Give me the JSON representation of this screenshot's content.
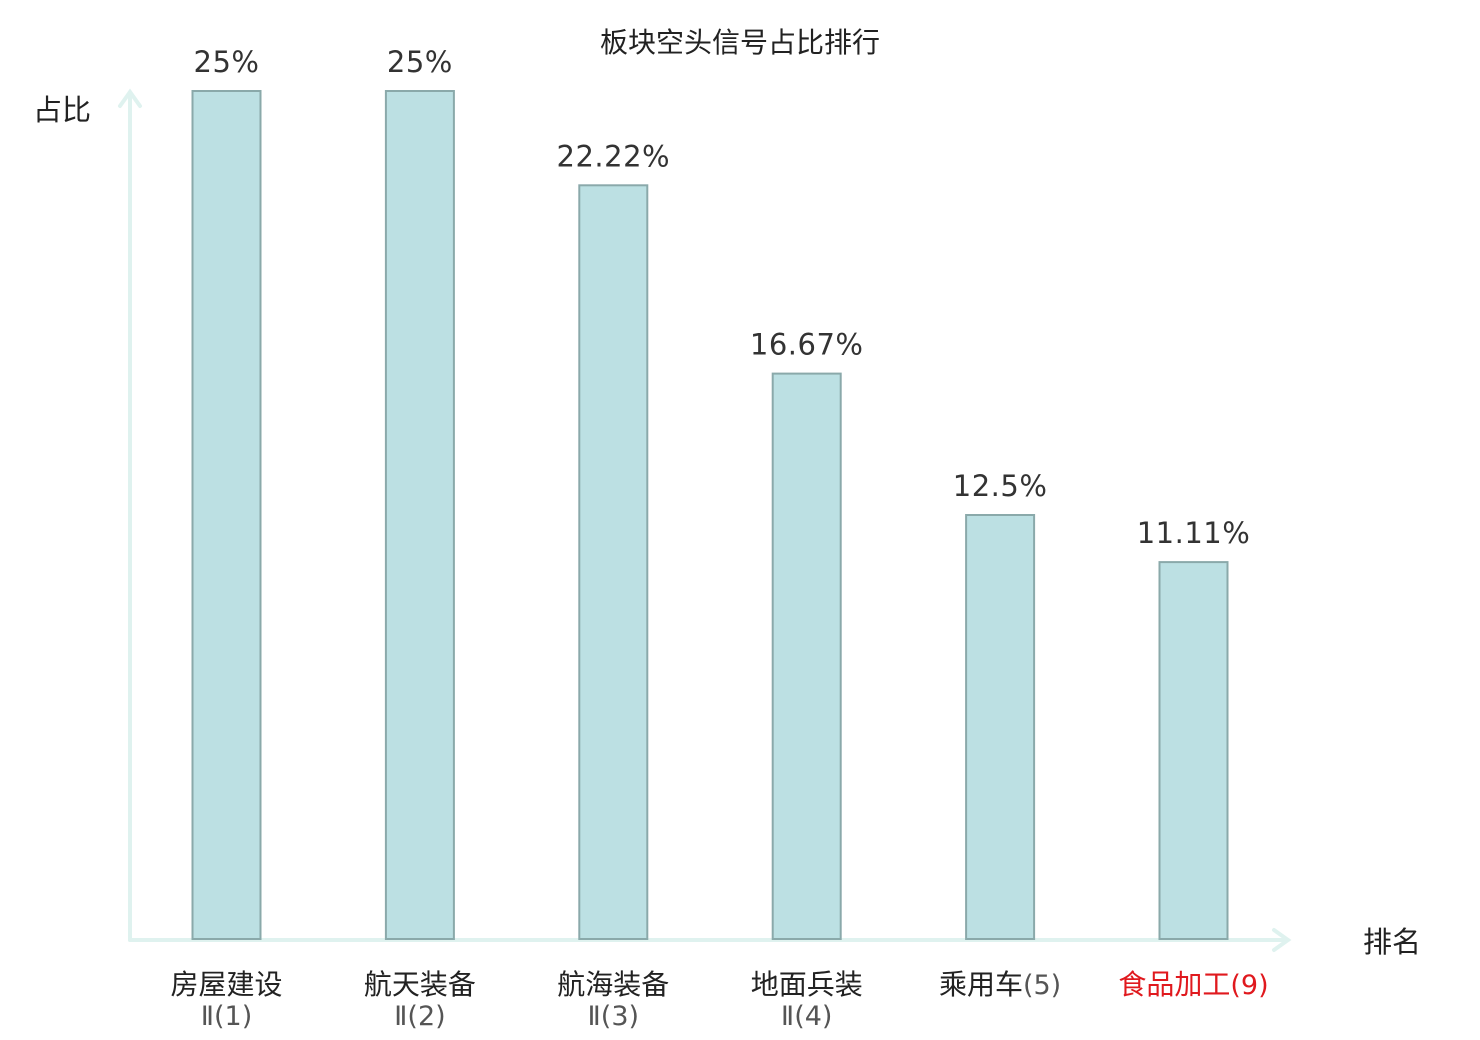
{
  "chart_data": {
    "type": "bar",
    "title": "板块空头信号占比排行",
    "ylabel": "占比",
    "xlabel": "排名",
    "ylim": [
      0,
      25
    ],
    "grid": false,
    "bar_color": "#bce0e3",
    "bar_stroke": "#8aa9aa",
    "axis_color": "#dff2ef",
    "highlight_color": "#e0191e",
    "categories": [
      {
        "name": "房屋建设",
        "suffix": "Ⅱ(1)",
        "suffix_on_new_line": true,
        "highlight": false
      },
      {
        "name": "航天装备",
        "suffix": "Ⅱ(2)",
        "suffix_on_new_line": true,
        "highlight": false
      },
      {
        "name": "航海装备",
        "suffix": "Ⅱ(3)",
        "suffix_on_new_line": true,
        "highlight": false
      },
      {
        "name": "地面兵装",
        "suffix": "Ⅱ(4)",
        "suffix_on_new_line": true,
        "highlight": false
      },
      {
        "name": "乘用车",
        "suffix": "(5)",
        "suffix_on_new_line": false,
        "highlight": false
      },
      {
        "name": "食品加工",
        "suffix": "(9)",
        "suffix_on_new_line": false,
        "highlight": true
      }
    ],
    "values": [
      25,
      25,
      22.22,
      16.67,
      12.5,
      11.11
    ],
    "value_labels": [
      "25%",
      "25%",
      "22.22%",
      "16.67%",
      "12.5%",
      "11.11%"
    ]
  }
}
